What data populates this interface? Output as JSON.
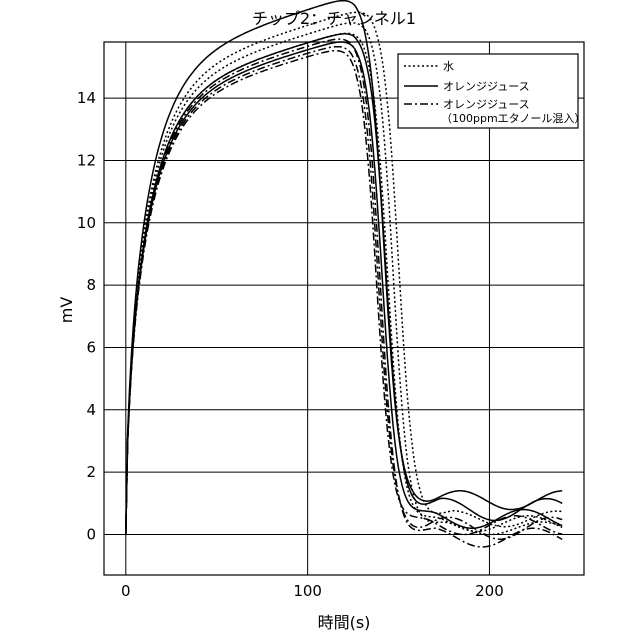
{
  "chart_data": {
    "type": "line",
    "title": "チップ2：チャンネル1",
    "xlabel": "時間(s)",
    "ylabel": "mV",
    "xlim": [
      -12,
      252
    ],
    "ylim": [
      -1.3,
      15.8
    ],
    "xticks": [
      0,
      100,
      200
    ],
    "yticks": [
      0,
      2,
      4,
      6,
      8,
      10,
      12,
      14
    ],
    "grid": true,
    "legend_position": "top-right",
    "legend": [
      {
        "label": "水",
        "style": "dotted"
      },
      {
        "label": "オレンジジュース",
        "style": "solid"
      },
      {
        "label": "オレンジジュース",
        "label2": "（100ppmエタノール混入）",
        "style": "dashdot"
      }
    ],
    "series": [
      {
        "group": "水",
        "style": "dotted",
        "plateau": 14.6,
        "end": 134,
        "mid": 150,
        "base": 0.5,
        "wobble": 0.25,
        "phase": 0.4
      },
      {
        "group": "水",
        "style": "dotted",
        "plateau": 14.35,
        "end": 132,
        "mid": 147,
        "base": 0.2,
        "wobble": 0.2,
        "phase": 1.3
      },
      {
        "group": "水",
        "style": "dotted",
        "plateau": 14.1,
        "end": 130,
        "mid": 144,
        "base": 0.35,
        "wobble": 0.25,
        "phase": 2.1
      },
      {
        "group": "オレンジジュース",
        "style": "solid",
        "plateau": 15.05,
        "end": 126,
        "mid": 142,
        "base": 1.1,
        "wobble": 0.3,
        "phase": 0.0
      },
      {
        "group": "オレンジジュース",
        "style": "solid",
        "plateau": 14.1,
        "end": 125,
        "mid": 143,
        "base": 0.8,
        "wobble": 0.35,
        "phase": 1.0
      },
      {
        "group": "オレンジジュース",
        "style": "solid",
        "plateau": 13.9,
        "end": 126,
        "mid": 141,
        "base": 0.5,
        "wobble": 0.3,
        "phase": 2.4
      },
      {
        "group": "オレンジジュース（100ppmエタノール混入）",
        "style": "dashdot",
        "plateau": 13.8,
        "end": 124,
        "mid": 139,
        "base": 0.2,
        "wobble": 0.35,
        "phase": 0.7
      },
      {
        "group": "オレンジジュース（100ppmエタノール混入）",
        "style": "dashdot",
        "plateau": 14.0,
        "end": 125,
        "mid": 140,
        "base": -0.1,
        "wobble": 0.3,
        "phase": 1.8
      },
      {
        "group": "オレンジジュース（100ppmエタノール混入）",
        "style": "dashdot",
        "plateau": 13.7,
        "end": 123,
        "mid": 138,
        "base": 0.3,
        "wobble": 0.3,
        "phase": 2.9
      }
    ]
  }
}
